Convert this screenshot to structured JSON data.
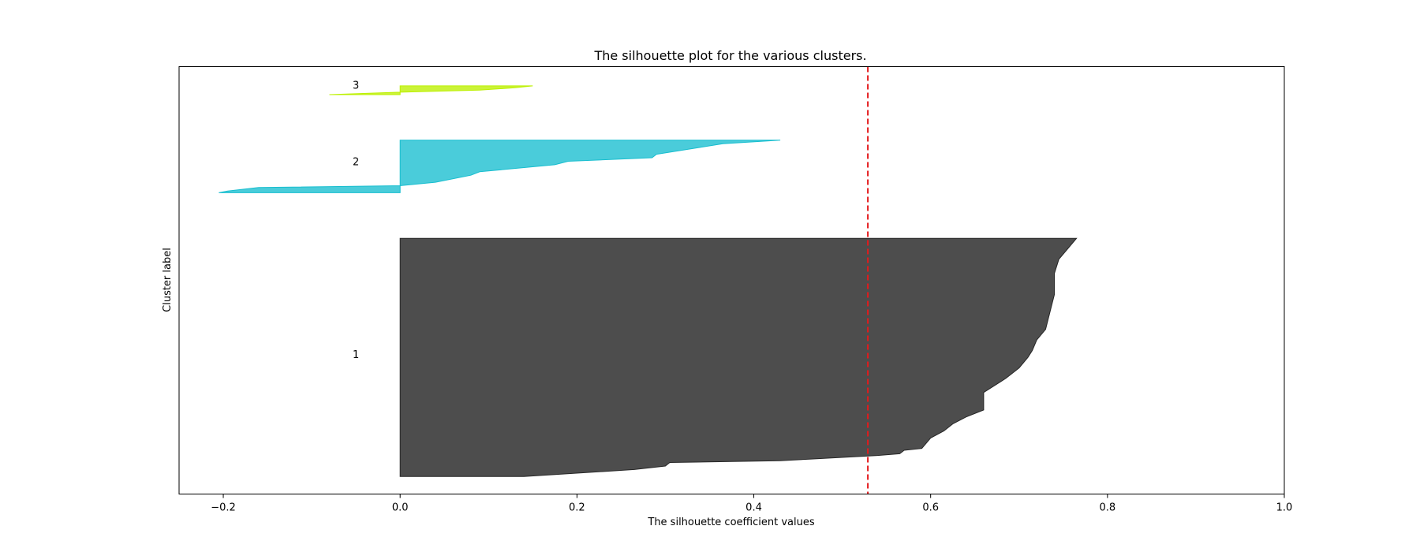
{
  "chart_data": {
    "type": "area",
    "title": "The silhouette plot for the various clusters.",
    "xlabel": "The silhouette coefficient values",
    "ylabel": "Cluster label",
    "xlim": [
      -0.25,
      1.0
    ],
    "ylim": [
      -5,
      117
    ],
    "xticks": [
      -0.2,
      0.0,
      0.2,
      0.4,
      0.6,
      0.8,
      1.0
    ],
    "xtick_labels": [
      "−0.2",
      "0.0",
      "0.2",
      "0.4",
      "0.6",
      "0.8",
      "1.0"
    ],
    "yticks": [],
    "grid": false,
    "reference_line": {
      "x": 0.529,
      "color": "#e41a1c",
      "style": "dashed"
    },
    "series": [
      {
        "name": "1",
        "color": "#4d4d4d",
        "edge": "#262626",
        "y_start": 0,
        "y_end": 68,
        "label_y": 35,
        "profile": [
          [
            0,
            0.14
          ],
          [
            2,
            0.265
          ],
          [
            3,
            0.3
          ],
          [
            4,
            0.305
          ],
          [
            4.5,
            0.43
          ],
          [
            5,
            0.465
          ],
          [
            6,
            0.54
          ],
          [
            6.5,
            0.565
          ],
          [
            7.5,
            0.57
          ],
          [
            8,
            0.59
          ],
          [
            11,
            0.6
          ],
          [
            13,
            0.615
          ],
          [
            15,
            0.625
          ],
          [
            17,
            0.64
          ],
          [
            19,
            0.66
          ],
          [
            24,
            0.66
          ],
          [
            28,
            0.685
          ],
          [
            31,
            0.7
          ],
          [
            34,
            0.71
          ],
          [
            36,
            0.715
          ],
          [
            39,
            0.72
          ],
          [
            42,
            0.73
          ],
          [
            47,
            0.735
          ],
          [
            52,
            0.74
          ],
          [
            58,
            0.74
          ],
          [
            62,
            0.745
          ],
          [
            65,
            0.755
          ],
          [
            68,
            0.765
          ]
        ]
      },
      {
        "name": "2",
        "color": "#17becf",
        "edge": "#17becf",
        "y_start": 81,
        "y_end": 96,
        "label_y": 90,
        "profile": [
          [
            81,
            -0.205
          ],
          [
            81.5,
            -0.195
          ],
          [
            82.5,
            -0.16
          ],
          [
            83,
            0.0
          ],
          [
            84,
            0.04
          ],
          [
            86,
            0.08
          ],
          [
            87,
            0.09
          ],
          [
            89,
            0.175
          ],
          [
            90,
            0.19
          ],
          [
            91,
            0.285
          ],
          [
            92,
            0.29
          ],
          [
            94,
            0.34
          ],
          [
            95,
            0.365
          ],
          [
            96,
            0.43
          ]
        ]
      },
      {
        "name": "3",
        "color": "#bcf000",
        "edge": "#bcf000",
        "y_start": 109,
        "y_end": 111.5,
        "label_y": 111.8,
        "profile": [
          [
            109,
            -0.08
          ],
          [
            109.7,
            0.0
          ],
          [
            110.3,
            0.09
          ],
          [
            111,
            0.13
          ],
          [
            111.5,
            0.15
          ]
        ]
      }
    ]
  }
}
